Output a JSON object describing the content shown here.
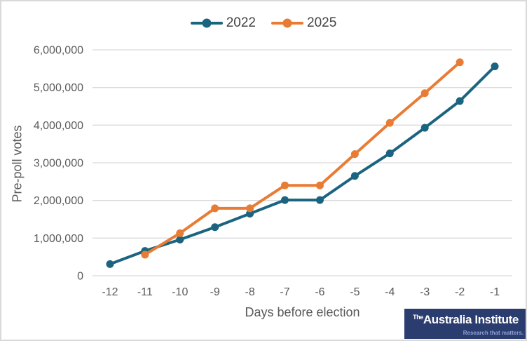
{
  "chart_data": {
    "type": "line",
    "title": "",
    "xlabel": "Days before election",
    "ylabel": "Pre-poll votes",
    "categories": [
      -12,
      -11,
      -10,
      -9,
      -8,
      -7,
      -6,
      -5,
      -4,
      -3,
      -2,
      -1
    ],
    "x_tick_labels": [
      "-12",
      "-11",
      "-10",
      "-9",
      "-8",
      "-7",
      "-6",
      "-5",
      "-4",
      "-3",
      "-2",
      "-1"
    ],
    "ylim": [
      0,
      6000000
    ],
    "yticks": [
      0,
      1000000,
      2000000,
      3000000,
      4000000,
      5000000,
      6000000
    ],
    "ytick_labels": [
      "0",
      "1,000,000",
      "2,000,000",
      "3,000,000",
      "4,000,000",
      "5,000,000",
      "6,000,000"
    ],
    "grid": "horizontal",
    "legend_position": "top-center",
    "series": [
      {
        "name": "2022",
        "color": "#1b6480",
        "x": [
          -12,
          -11,
          -10,
          -9,
          -8,
          -7,
          -6,
          -5,
          -4,
          -3,
          -2,
          -1
        ],
        "values": [
          310000,
          660000,
          960000,
          1290000,
          1650000,
          2010000,
          2010000,
          2650000,
          3250000,
          3930000,
          4640000,
          5560000
        ]
      },
      {
        "name": "2025",
        "color": "#e97c34",
        "x": [
          -11,
          -10,
          -9,
          -8,
          -7,
          -6,
          -5,
          -4,
          -3,
          -2
        ],
        "values": [
          560000,
          1130000,
          1790000,
          1790000,
          2400000,
          2400000,
          3230000,
          4060000,
          4850000,
          5670000
        ]
      }
    ]
  },
  "colors": {
    "gridline": "#d9d9d9",
    "tick_text": "#595959",
    "axis_title_text": "#595959",
    "legend_text": "#444444",
    "frame_border": "#d9d9d9",
    "logo_bg": "#2b3c6e",
    "logo_text": "#ffffff",
    "logo_tagline": "#8fa3d8"
  },
  "logo": {
    "prefix": "The",
    "name": "Australia Institute",
    "tagline": "Research that matters."
  }
}
